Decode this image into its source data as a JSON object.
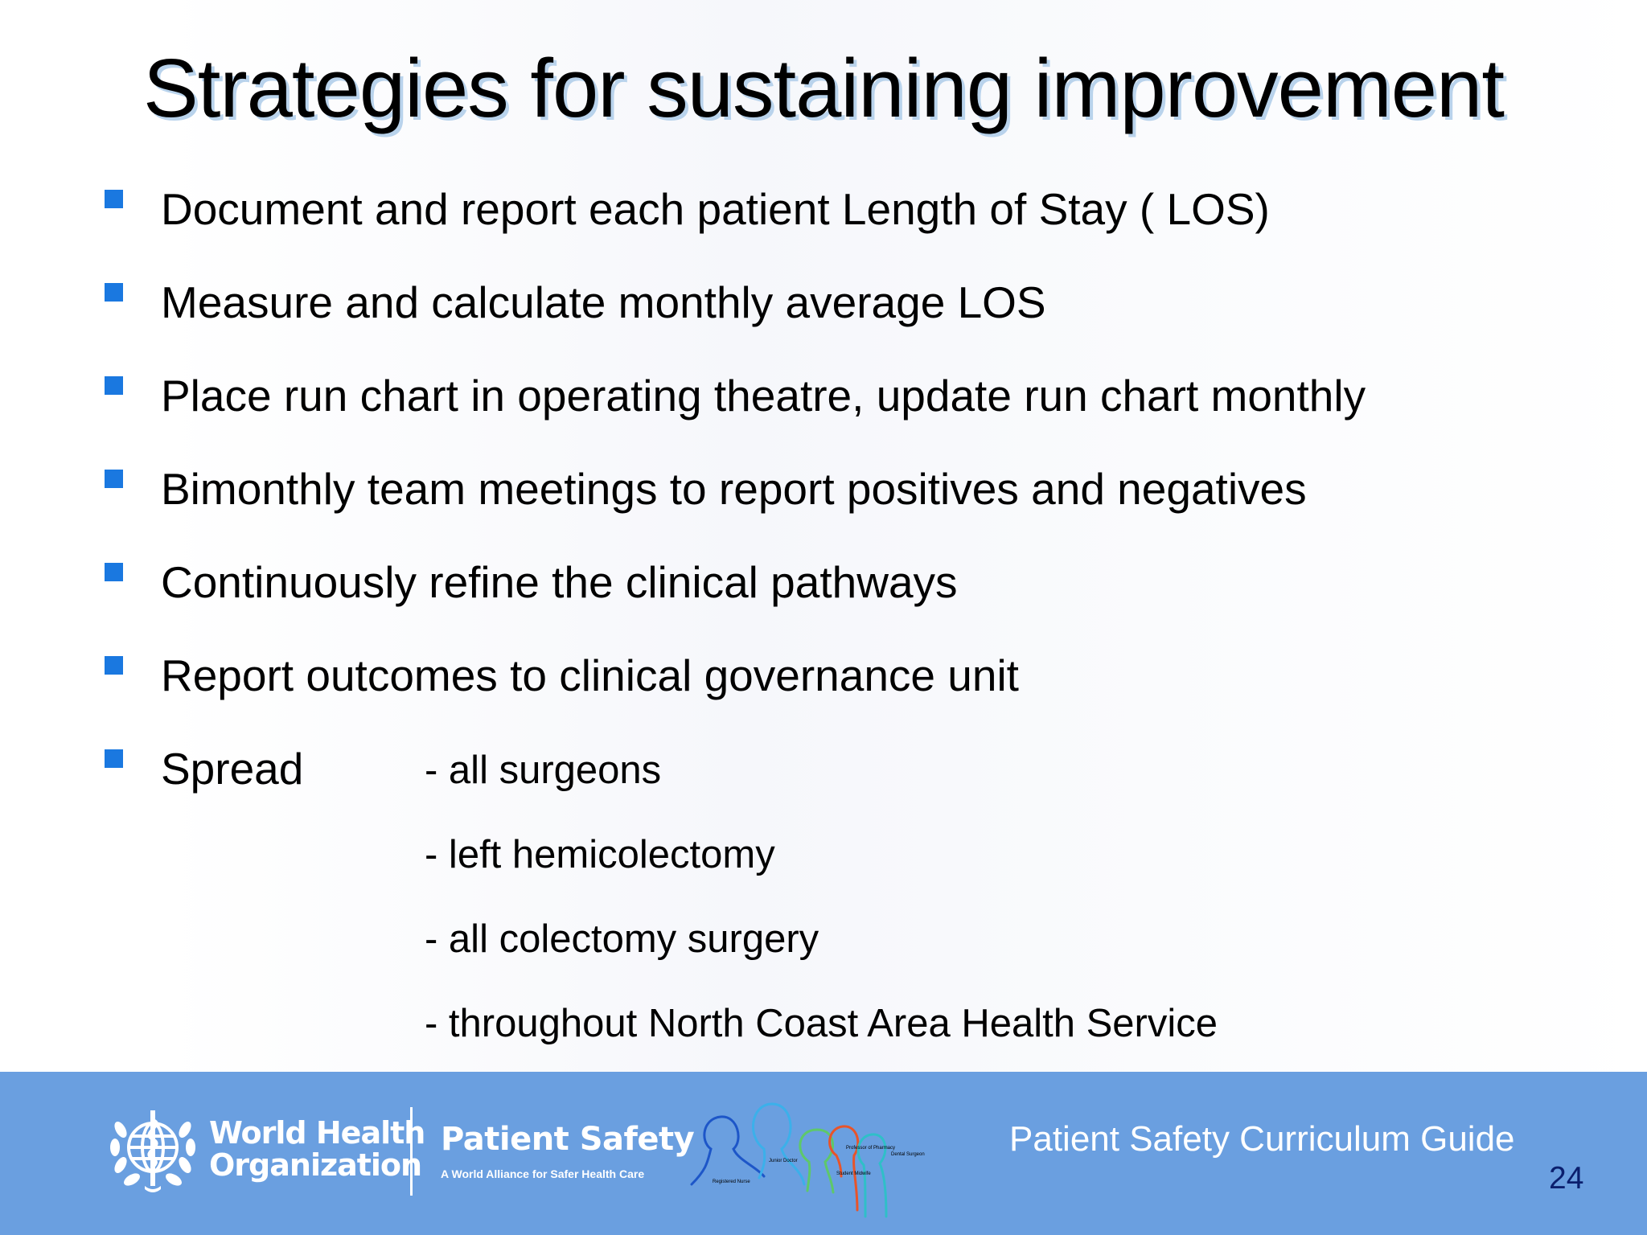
{
  "slide": {
    "title": "Strategies for sustaining improvement",
    "bullets": [
      "Document and report each patient Length of Stay ( LOS)",
      "Measure and calculate monthly average LOS",
      "Place run chart in operating theatre, update run chart monthly",
      "Bimonthly team meetings to report positives and negatives",
      "Continuously refine the clinical pathways",
      "Report outcomes to clinical governance unit",
      "Spread"
    ],
    "spread_items": [
      "- all surgeons",
      "- left hemicolectomy",
      "- all colectomy surgery",
      "- throughout North Coast Area Health Service"
    ],
    "bullet_color": "#1a78e0"
  },
  "footer": {
    "who_name": "World Health\nOrganization",
    "patient_safety": "Patient Safety",
    "alliance": "A World Alliance for Safer Health Care",
    "figure_labels": [
      "Registered Nurse",
      "Junior Doctor",
      "Professor of Pharmacy",
      "Student Midwife",
      "Dental Surgeon"
    ],
    "curriculum": "Patient Safety Curriculum Guide",
    "page_number": "24",
    "background_color": "#6a9fe0"
  }
}
